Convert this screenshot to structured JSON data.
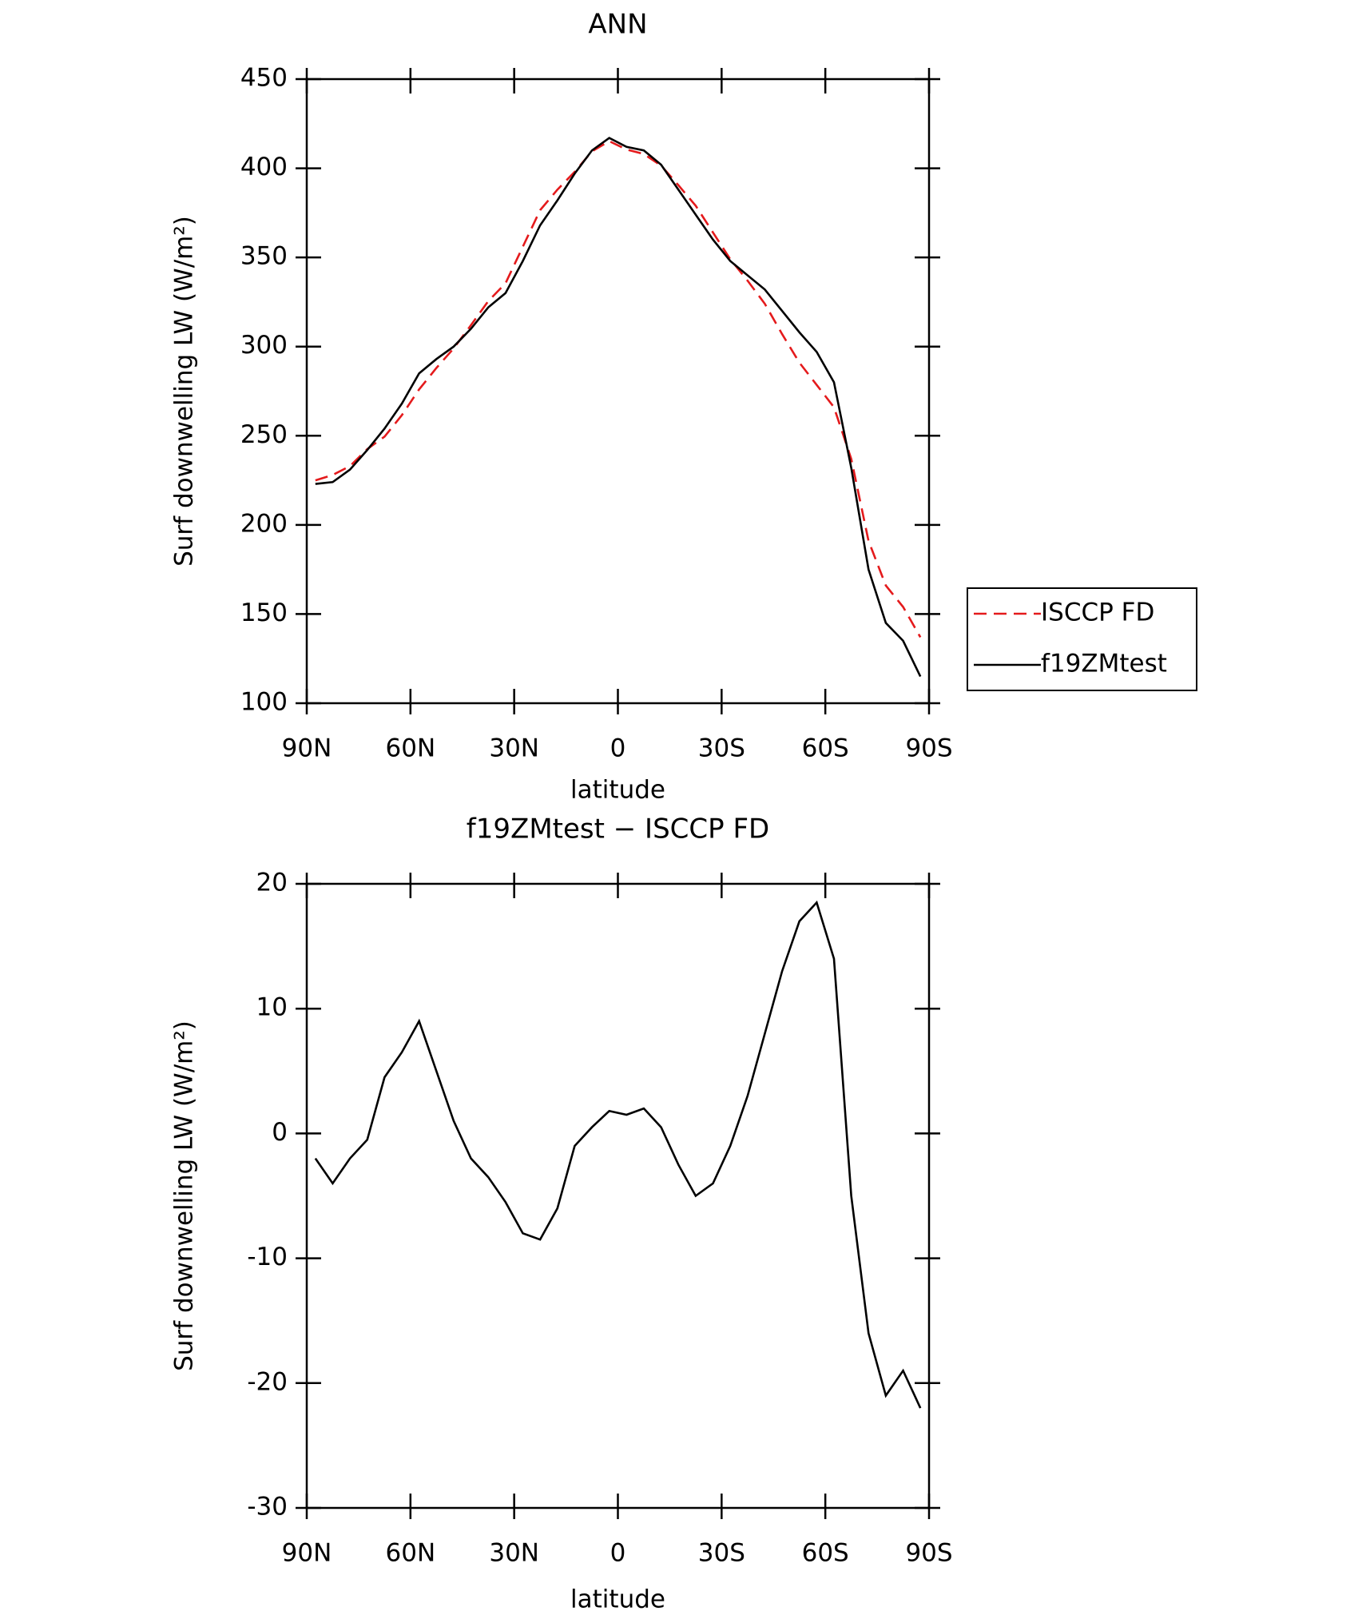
{
  "chart_data": [
    {
      "type": "line",
      "title": "ANN",
      "xlabel": "latitude",
      "ylabel": "Surf downwelling LW (W/m²)",
      "x": [
        87.5,
        82.5,
        77.5,
        72.5,
        67.5,
        62.5,
        57.5,
        52.5,
        47.5,
        42.5,
        37.5,
        32.5,
        27.5,
        22.5,
        17.5,
        12.5,
        7.5,
        2.5,
        -2.5,
        -7.5,
        -12.5,
        -17.5,
        -22.5,
        -27.5,
        -32.5,
        -37.5,
        -42.5,
        -47.5,
        -52.5,
        -57.5,
        -62.5,
        -67.5,
        -72.5,
        -77.5,
        -82.5,
        -87.5
      ],
      "series": [
        {
          "name": "ISCCP FD",
          "color": "#e41a1c",
          "linestyle": "dashed",
          "values": [
            225,
            228,
            233,
            242.5,
            249.5,
            261.5,
            276,
            288,
            299,
            312,
            325.5,
            335.5,
            356,
            376.5,
            388,
            398,
            409.5,
            415.2,
            410.5,
            408,
            401.5,
            390.5,
            379,
            364,
            349,
            337,
            324,
            307,
            291,
            278.5,
            266,
            237,
            191,
            166,
            154,
            137
          ]
        },
        {
          "name": "f19ZMtest",
          "color": "#000000",
          "linestyle": "solid",
          "values": [
            223,
            224,
            231,
            242,
            254,
            268,
            285,
            293,
            300,
            310,
            322,
            330,
            348,
            368,
            382,
            397,
            410,
            417,
            412,
            410,
            402,
            388,
            374,
            360,
            348,
            340,
            332,
            320,
            308,
            297,
            280,
            232,
            175,
            145,
            135,
            115
          ]
        }
      ],
      "xlim": [
        90,
        -90
      ],
      "xticks": [
        {
          "value": 90,
          "label": "90N"
        },
        {
          "value": 60,
          "label": "60N"
        },
        {
          "value": 30,
          "label": "30N"
        },
        0,
        {
          "value": -30,
          "label": "30S"
        },
        {
          "value": -60,
          "label": "60S"
        },
        {
          "value": -90,
          "label": "90S"
        }
      ],
      "ylim": [
        100,
        450
      ],
      "yticks": [
        100,
        150,
        200,
        250,
        300,
        350,
        400,
        450
      ],
      "legend": "right"
    },
    {
      "type": "line",
      "title": "f19ZMtest − ISCCP FD",
      "xlabel": "latitude",
      "ylabel": "Surf downwelling LW (W/m²)",
      "x": [
        87.5,
        82.5,
        77.5,
        72.5,
        67.5,
        62.5,
        57.5,
        52.5,
        47.5,
        42.5,
        37.5,
        32.5,
        27.5,
        22.5,
        17.5,
        12.5,
        7.5,
        2.5,
        -2.5,
        -7.5,
        -12.5,
        -17.5,
        -22.5,
        -27.5,
        -32.5,
        -37.5,
        -42.5,
        -47.5,
        -52.5,
        -57.5,
        -62.5,
        -67.5,
        -72.5,
        -77.5,
        -82.5,
        -87.5
      ],
      "values": [
        -2,
        -4,
        -2,
        -0.5,
        4.5,
        6.5,
        9,
        5,
        1,
        -2,
        -3.5,
        -5.5,
        -8,
        -8.5,
        -6,
        -1,
        0.5,
        1.8,
        1.5,
        2,
        0.5,
        -2.5,
        -5,
        -4,
        -1,
        3,
        8,
        13,
        17,
        18.5,
        14,
        -5,
        -16,
        -21,
        -19,
        -22
      ],
      "color": "#000000",
      "xlim": [
        90,
        -90
      ],
      "xticks": [
        {
          "value": 90,
          "label": "90N"
        },
        {
          "value": 60,
          "label": "60N"
        },
        {
          "value": 30,
          "label": "30N"
        },
        0,
        {
          "value": -30,
          "label": "30S"
        },
        {
          "value": -60,
          "label": "60S"
        },
        {
          "value": -90,
          "label": "90S"
        }
      ],
      "ylim": [
        -30,
        20
      ],
      "yticks": [
        -30,
        -20,
        -10,
        0,
        10,
        20
      ]
    }
  ]
}
